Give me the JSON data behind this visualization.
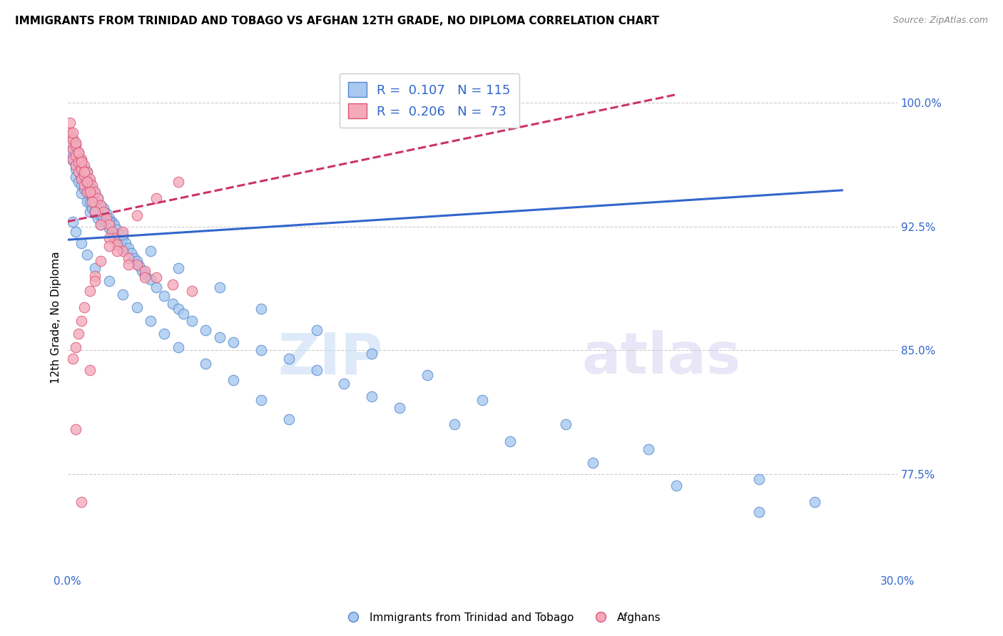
{
  "title": "IMMIGRANTS FROM TRINIDAD AND TOBAGO VS AFGHAN 12TH GRADE, NO DIPLOMA CORRELATION CHART",
  "source": "Source: ZipAtlas.com",
  "ylabel": "12th Grade, No Diploma",
  "ytick_labels": [
    "100.0%",
    "92.5%",
    "85.0%",
    "77.5%"
  ],
  "ytick_values": [
    1.0,
    0.925,
    0.85,
    0.775
  ],
  "xlim": [
    0.0,
    0.3
  ],
  "ylim": [
    0.715,
    1.025
  ],
  "legend_r1_val": "0.107",
  "legend_n1_val": "115",
  "legend_r2_val": "0.206",
  "legend_n2_val": "73",
  "blue_color": "#A8C8F0",
  "pink_color": "#F4AABB",
  "blue_edge_color": "#5588CC",
  "pink_edge_color": "#DD5577",
  "blue_line_color": "#3366CC",
  "pink_line_color": "#CC3366",
  "blue_label": "Immigrants from Trinidad and Tobago",
  "pink_label": "Afghans",
  "watermark_zip": "ZIP",
  "watermark_atlas": "atlas",
  "blue_scatter_x": [
    0.001,
    0.001,
    0.002,
    0.002,
    0.002,
    0.002,
    0.003,
    0.003,
    0.003,
    0.003,
    0.003,
    0.004,
    0.004,
    0.004,
    0.004,
    0.005,
    0.005,
    0.005,
    0.005,
    0.005,
    0.006,
    0.006,
    0.006,
    0.007,
    0.007,
    0.007,
    0.007,
    0.008,
    0.008,
    0.008,
    0.008,
    0.009,
    0.009,
    0.009,
    0.01,
    0.01,
    0.01,
    0.011,
    0.011,
    0.011,
    0.012,
    0.012,
    0.012,
    0.013,
    0.013,
    0.014,
    0.014,
    0.015,
    0.015,
    0.016,
    0.016,
    0.017,
    0.017,
    0.018,
    0.018,
    0.019,
    0.02,
    0.02,
    0.021,
    0.022,
    0.023,
    0.024,
    0.025,
    0.026,
    0.027,
    0.028,
    0.03,
    0.032,
    0.035,
    0.038,
    0.04,
    0.042,
    0.045,
    0.05,
    0.055,
    0.06,
    0.07,
    0.08,
    0.09,
    0.1,
    0.11,
    0.12,
    0.14,
    0.16,
    0.19,
    0.22,
    0.25,
    0.002,
    0.003,
    0.005,
    0.007,
    0.01,
    0.015,
    0.02,
    0.025,
    0.03,
    0.035,
    0.04,
    0.05,
    0.06,
    0.07,
    0.08,
    0.01,
    0.015,
    0.02,
    0.03,
    0.04,
    0.055,
    0.07,
    0.09,
    0.11,
    0.13,
    0.15,
    0.18,
    0.21,
    0.25,
    0.27
  ],
  "blue_scatter_y": [
    0.98,
    0.975,
    0.978,
    0.972,
    0.968,
    0.965,
    0.975,
    0.97,
    0.965,
    0.96,
    0.955,
    0.968,
    0.963,
    0.958,
    0.952,
    0.965,
    0.96,
    0.955,
    0.95,
    0.945,
    0.96,
    0.955,
    0.948,
    0.958,
    0.952,
    0.946,
    0.94,
    0.952,
    0.946,
    0.94,
    0.934,
    0.948,
    0.942,
    0.936,
    0.945,
    0.939,
    0.933,
    0.942,
    0.936,
    0.93,
    0.938,
    0.932,
    0.926,
    0.936,
    0.93,
    0.933,
    0.927,
    0.93,
    0.924,
    0.928,
    0.922,
    0.926,
    0.92,
    0.923,
    0.917,
    0.92,
    0.918,
    0.912,
    0.915,
    0.912,
    0.909,
    0.906,
    0.904,
    0.901,
    0.898,
    0.896,
    0.893,
    0.888,
    0.883,
    0.878,
    0.875,
    0.872,
    0.868,
    0.862,
    0.858,
    0.855,
    0.85,
    0.845,
    0.838,
    0.83,
    0.822,
    0.815,
    0.805,
    0.795,
    0.782,
    0.768,
    0.752,
    0.928,
    0.922,
    0.915,
    0.908,
    0.9,
    0.892,
    0.884,
    0.876,
    0.868,
    0.86,
    0.852,
    0.842,
    0.832,
    0.82,
    0.808,
    0.935,
    0.928,
    0.92,
    0.91,
    0.9,
    0.888,
    0.875,
    0.862,
    0.848,
    0.835,
    0.82,
    0.805,
    0.79,
    0.772,
    0.758
  ],
  "pink_scatter_x": [
    0.001,
    0.001,
    0.002,
    0.002,
    0.002,
    0.003,
    0.003,
    0.003,
    0.004,
    0.004,
    0.004,
    0.005,
    0.005,
    0.005,
    0.006,
    0.006,
    0.006,
    0.007,
    0.007,
    0.007,
    0.008,
    0.008,
    0.009,
    0.009,
    0.01,
    0.01,
    0.011,
    0.012,
    0.013,
    0.014,
    0.015,
    0.016,
    0.017,
    0.018,
    0.02,
    0.022,
    0.025,
    0.028,
    0.032,
    0.038,
    0.045,
    0.001,
    0.002,
    0.003,
    0.004,
    0.005,
    0.006,
    0.007,
    0.008,
    0.009,
    0.01,
    0.012,
    0.015,
    0.018,
    0.022,
    0.028,
    0.002,
    0.003,
    0.004,
    0.005,
    0.006,
    0.008,
    0.01,
    0.012,
    0.015,
    0.02,
    0.025,
    0.032,
    0.04,
    0.003,
    0.005,
    0.008,
    0.01
  ],
  "pink_scatter_y": [
    0.982,
    0.976,
    0.978,
    0.972,
    0.966,
    0.974,
    0.968,
    0.962,
    0.97,
    0.964,
    0.958,
    0.966,
    0.96,
    0.954,
    0.962,
    0.956,
    0.95,
    0.958,
    0.952,
    0.946,
    0.954,
    0.948,
    0.95,
    0.944,
    0.946,
    0.94,
    0.942,
    0.938,
    0.934,
    0.93,
    0.926,
    0.922,
    0.918,
    0.914,
    0.91,
    0.906,
    0.902,
    0.898,
    0.894,
    0.89,
    0.886,
    0.988,
    0.982,
    0.976,
    0.97,
    0.964,
    0.958,
    0.952,
    0.946,
    0.94,
    0.934,
    0.926,
    0.918,
    0.91,
    0.902,
    0.894,
    0.845,
    0.852,
    0.86,
    0.868,
    0.876,
    0.886,
    0.895,
    0.904,
    0.913,
    0.922,
    0.932,
    0.942,
    0.952,
    0.802,
    0.758,
    0.838,
    0.892
  ],
  "blue_trend_x": [
    0.0,
    0.28
  ],
  "blue_trend_y": [
    0.917,
    0.947
  ],
  "pink_trend_x": [
    0.0,
    0.22
  ],
  "pink_trend_y": [
    0.928,
    1.005
  ],
  "grid_color": "#CCCCCC",
  "bg_color": "#FFFFFF",
  "value_color": "#3366CC",
  "label_color": "#222222"
}
